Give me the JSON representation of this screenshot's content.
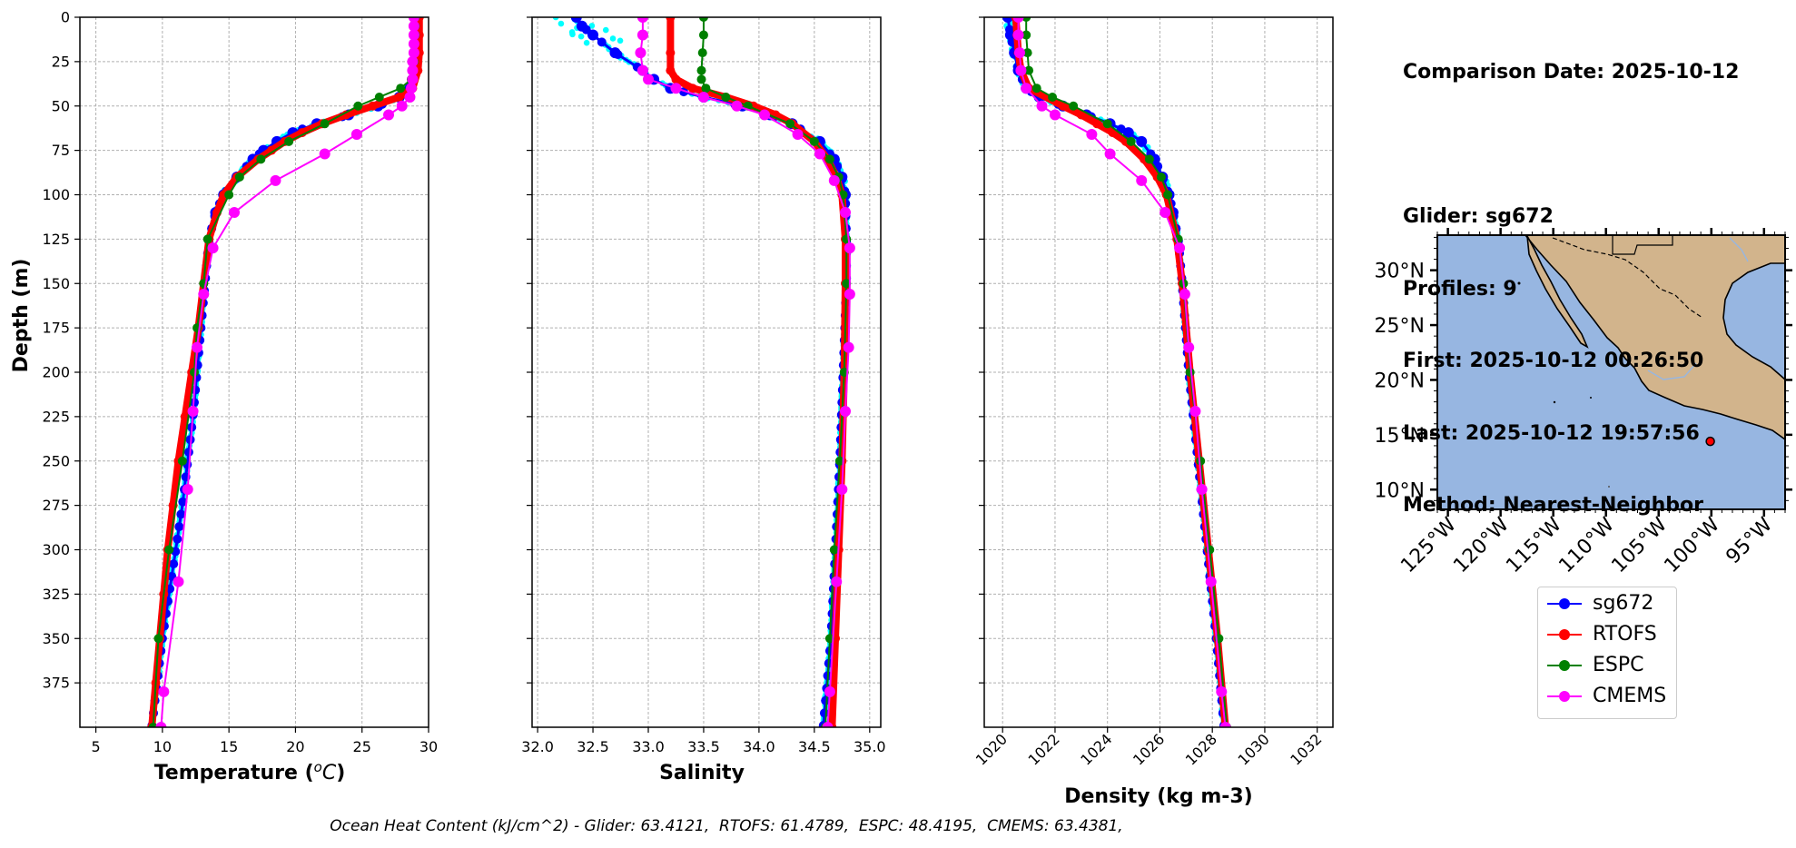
{
  "info": {
    "comparison_date": "Comparison Date: 2025-10-12",
    "glider": "Glider: sg672",
    "profiles": "Profiles: 9",
    "first": "First: 2025-10-12 00:26:50",
    "last": "Last: 2025-10-12 19:57:56",
    "method": "Method: Nearest-Neighbor"
  },
  "footer": "Ocean Heat Content (kJ/cm^2) - Glider: 63.4121,  RTOFS: 61.4789,  ESPC: 48.4195,  CMEMS: 63.4381,",
  "colors": {
    "sg672": "#0000ff",
    "RTOFS": "#ff0000",
    "ESPC": "#008000",
    "CMEMS": "#ff00ff",
    "glider_raw": "#00ffff",
    "ocean": "#97b6e1",
    "land": "#d2b48c"
  },
  "legend": [
    "sg672",
    "RTOFS",
    "ESPC",
    "CMEMS"
  ],
  "chart_data": [
    {
      "type": "line",
      "xlabel": "Temperature (°C)",
      "ylabel": "Depth (m)",
      "xlim": [
        3.8,
        30
      ],
      "ylim": [
        400,
        0
      ],
      "xticks": [
        5,
        10,
        15,
        20,
        25,
        30
      ],
      "yticks": [
        0,
        25,
        50,
        75,
        100,
        125,
        150,
        175,
        200,
        225,
        250,
        275,
        300,
        325,
        350,
        375
      ],
      "grid": true,
      "series": [
        {
          "name": "sg672",
          "depth": [
            0,
            10,
            20,
            30,
            40,
            45,
            50,
            55,
            60,
            65,
            70,
            75,
            80,
            90,
            100,
            110,
            125,
            150,
            175,
            200,
            225,
            250,
            275,
            300,
            325,
            350,
            375,
            400
          ],
          "values": [
            29.1,
            29.1,
            29.1,
            29.0,
            28.6,
            27.8,
            26.2,
            24.0,
            21.6,
            19.8,
            18.6,
            17.6,
            16.8,
            15.6,
            14.6,
            14.0,
            13.5,
            13.2,
            12.9,
            12.6,
            12.3,
            11.9,
            11.5,
            11.0,
            10.5,
            10.0,
            9.6,
            9.2
          ]
        },
        {
          "name": "RTOFS",
          "depth": [
            0,
            10,
            20,
            30,
            40,
            45,
            50,
            55,
            60,
            65,
            70,
            75,
            80,
            90,
            100,
            110,
            125,
            150,
            175,
            200,
            225,
            250,
            275,
            300,
            325,
            350,
            375,
            400
          ],
          "values": [
            29.3,
            29.3,
            29.3,
            29.2,
            28.8,
            27.8,
            25.8,
            23.8,
            22.0,
            20.5,
            19.2,
            18.2,
            17.2,
            15.6,
            14.6,
            14.1,
            13.5,
            13.1,
            12.7,
            12.2,
            11.7,
            11.2,
            10.8,
            10.4,
            10.1,
            9.8,
            9.5,
            9.2
          ]
        },
        {
          "name": "ESPC",
          "depth": [
            0,
            5,
            10,
            15,
            20,
            25,
            30,
            35,
            40,
            45,
            50,
            60,
            70,
            80,
            90,
            100,
            125,
            150,
            175,
            200,
            250,
            300,
            350,
            400
          ],
          "values": [
            29.0,
            29.0,
            29.0,
            28.9,
            28.9,
            28.9,
            28.8,
            28.7,
            27.9,
            26.3,
            24.7,
            22.2,
            19.5,
            17.4,
            15.8,
            15.0,
            13.4,
            13.1,
            12.6,
            12.4,
            11.5,
            10.5,
            9.7,
            9.3
          ]
        },
        {
          "name": "CMEMS",
          "depth": [
            0,
            5,
            10,
            15,
            20,
            25,
            30,
            35,
            40,
            45,
            50,
            55,
            66,
            77,
            92,
            110,
            130,
            156,
            186,
            222,
            266,
            318,
            380,
            400
          ],
          "values": [
            28.9,
            28.9,
            28.9,
            28.9,
            28.9,
            28.8,
            28.8,
            28.8,
            28.7,
            28.6,
            28.0,
            27.0,
            24.6,
            22.2,
            18.5,
            15.4,
            13.8,
            13.1,
            12.6,
            12.3,
            11.9,
            11.2,
            10.1,
            9.9
          ]
        }
      ]
    },
    {
      "type": "line",
      "xlabel": "Salinity",
      "xlim": [
        31.95,
        35.1
      ],
      "ylim": [
        400,
        0
      ],
      "xticks": [
        32.0,
        32.5,
        33.0,
        33.5,
        34.0,
        34.5,
        35.0
      ],
      "grid": true,
      "series": [
        {
          "name": "sg672",
          "depth": [
            0,
            5,
            10,
            20,
            30,
            35,
            40,
            45,
            50,
            55,
            60,
            70,
            80,
            90,
            100,
            125,
            150,
            200,
            250,
            300,
            350,
            400
          ],
          "values": [
            32.35,
            32.4,
            32.5,
            32.7,
            32.95,
            33.05,
            33.2,
            33.5,
            33.85,
            34.1,
            34.3,
            34.55,
            34.68,
            34.75,
            34.78,
            34.79,
            34.79,
            34.76,
            34.73,
            34.69,
            34.65,
            34.58
          ]
        },
        {
          "name": "RTOFS",
          "depth": [
            0,
            20,
            30,
            35,
            40,
            45,
            50,
            55,
            60,
            70,
            80,
            90,
            100,
            125,
            150,
            200,
            250,
            300,
            350,
            400
          ],
          "values": [
            33.2,
            33.2,
            33.2,
            33.25,
            33.4,
            33.7,
            33.95,
            34.15,
            34.3,
            34.5,
            34.62,
            34.7,
            34.75,
            34.78,
            34.78,
            34.77,
            34.75,
            34.72,
            34.69,
            34.66
          ]
        },
        {
          "name": "ESPC",
          "depth": [
            0,
            10,
            20,
            30,
            35,
            40,
            45,
            50,
            60,
            70,
            80,
            90,
            100,
            125,
            150,
            200,
            250,
            300,
            350,
            400
          ],
          "values": [
            33.5,
            33.5,
            33.49,
            33.48,
            33.48,
            33.52,
            33.7,
            33.9,
            34.28,
            34.5,
            34.64,
            34.72,
            34.76,
            34.79,
            34.79,
            34.77,
            34.73,
            34.68,
            34.64,
            34.6
          ]
        },
        {
          "name": "CMEMS",
          "depth": [
            0,
            10,
            20,
            30,
            35,
            40,
            45,
            50,
            55,
            66,
            77,
            92,
            110,
            130,
            156,
            186,
            222,
            266,
            318,
            380,
            400
          ],
          "values": [
            32.95,
            32.95,
            32.93,
            32.95,
            33.0,
            33.25,
            33.5,
            33.8,
            34.05,
            34.35,
            34.55,
            34.68,
            34.78,
            34.82,
            34.82,
            34.81,
            34.78,
            34.75,
            34.7,
            34.64,
            34.62
          ]
        }
      ]
    },
    {
      "type": "line",
      "xlabel": "Density (kg m-3)",
      "xlim": [
        1019.3,
        1032.6
      ],
      "ylim": [
        400,
        0
      ],
      "xticks": [
        1020,
        1022,
        1024,
        1026,
        1028,
        1030,
        1032
      ],
      "grid": true,
      "series": [
        {
          "name": "sg672",
          "depth": [
            0,
            10,
            20,
            30,
            40,
            45,
            50,
            55,
            60,
            65,
            70,
            80,
            90,
            100,
            110,
            125,
            150,
            200,
            250,
            300,
            350,
            400
          ],
          "values": [
            1020.2,
            1020.3,
            1020.45,
            1020.6,
            1020.9,
            1021.4,
            1022.3,
            1023.2,
            1024.1,
            1024.8,
            1025.3,
            1025.8,
            1026.1,
            1026.35,
            1026.5,
            1026.7,
            1026.85,
            1027.1,
            1027.45,
            1027.8,
            1028.15,
            1028.45
          ]
        },
        {
          "name": "RTOFS",
          "depth": [
            0,
            10,
            20,
            30,
            40,
            50,
            55,
            60,
            65,
            70,
            80,
            90,
            100,
            125,
            150,
            200,
            250,
            300,
            350,
            400
          ],
          "values": [
            1020.5,
            1020.55,
            1020.6,
            1020.7,
            1021.0,
            1022.3,
            1023.0,
            1023.6,
            1024.2,
            1024.7,
            1025.4,
            1025.9,
            1026.25,
            1026.65,
            1026.85,
            1027.15,
            1027.5,
            1027.85,
            1028.2,
            1028.5
          ]
        },
        {
          "name": "ESPC",
          "depth": [
            0,
            10,
            20,
            30,
            40,
            45,
            50,
            60,
            70,
            80,
            90,
            100,
            125,
            150,
            200,
            250,
            300,
            350,
            400
          ],
          "values": [
            1020.9,
            1020.9,
            1020.95,
            1021.0,
            1021.3,
            1021.9,
            1022.7,
            1024.0,
            1024.9,
            1025.6,
            1026.05,
            1026.3,
            1026.7,
            1026.9,
            1027.15,
            1027.55,
            1027.9,
            1028.25,
            1028.55
          ]
        },
        {
          "name": "CMEMS",
          "depth": [
            0,
            10,
            20,
            30,
            40,
            50,
            55,
            66,
            77,
            92,
            110,
            130,
            156,
            186,
            222,
            266,
            318,
            380,
            400
          ],
          "values": [
            1020.6,
            1020.6,
            1020.65,
            1020.7,
            1020.9,
            1021.5,
            1022.0,
            1023.4,
            1024.1,
            1025.3,
            1026.2,
            1026.75,
            1026.95,
            1027.1,
            1027.35,
            1027.6,
            1027.95,
            1028.35,
            1028.5
          ]
        }
      ]
    }
  ],
  "map": {
    "lat_ticks": [
      "30°N",
      "25°N",
      "20°N",
      "15°N",
      "10°N"
    ],
    "lat_values": [
      30,
      25,
      20,
      15,
      10
    ],
    "lon_ticks": [
      "125°W",
      "120°W",
      "115°W",
      "110°W",
      "105°W",
      "100°W",
      "95°W"
    ],
    "lon_values": [
      -125,
      -120,
      -115,
      -110,
      -105,
      -100,
      -95
    ],
    "extent": [
      -126,
      -93,
      8.2,
      33.2
    ],
    "glider_position": [
      -100.1,
      14.4
    ]
  }
}
